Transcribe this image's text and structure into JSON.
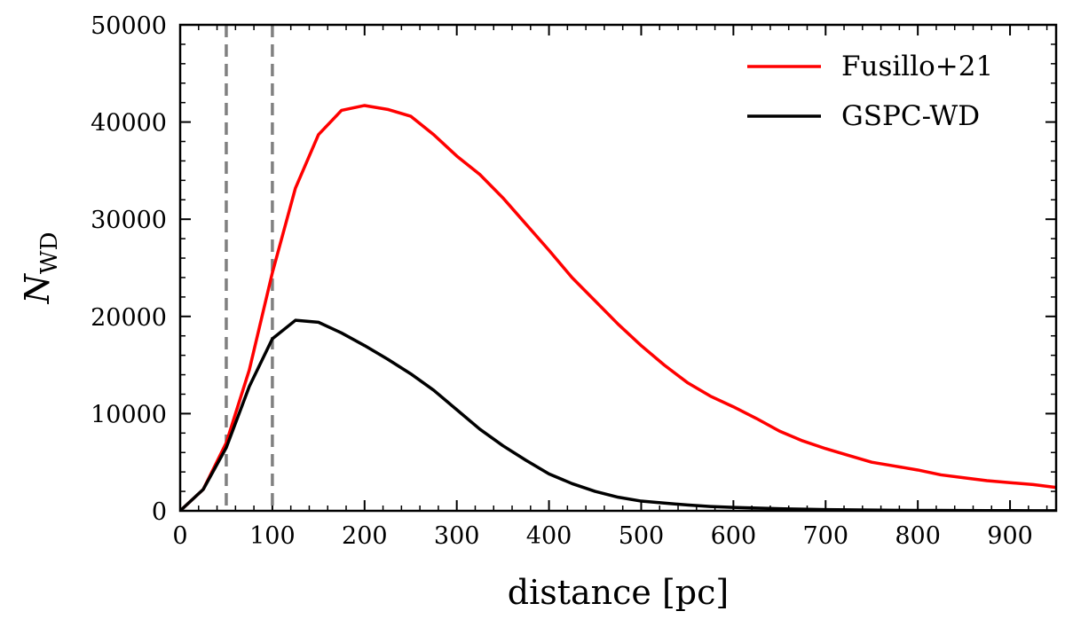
{
  "chart_data": {
    "type": "line",
    "title": "",
    "xlabel": "distance [pc]",
    "ylabel": {
      "main": "N",
      "sub": "WD"
    },
    "xlim": [
      0,
      950
    ],
    "ylim": [
      0,
      50000
    ],
    "x_ticks": [
      0,
      100,
      200,
      300,
      400,
      500,
      600,
      700,
      800,
      900
    ],
    "y_ticks": [
      0,
      10000,
      20000,
      30000,
      40000,
      50000
    ],
    "grid": false,
    "legend_position": "top-right",
    "vlines": [
      {
        "x": 50,
        "color": "#808080",
        "style": "dashed"
      },
      {
        "x": 100,
        "color": "#808080",
        "style": "dashed"
      }
    ],
    "series": [
      {
        "name": "Fusillo+21",
        "color": "#ff0000",
        "x": [
          0,
          25,
          50,
          75,
          100,
          125,
          150,
          175,
          200,
          225,
          250,
          275,
          300,
          325,
          350,
          375,
          400,
          425,
          450,
          475,
          500,
          525,
          550,
          575,
          600,
          625,
          650,
          675,
          700,
          725,
          750,
          775,
          800,
          825,
          850,
          875,
          900,
          925,
          950
        ],
        "y": [
          0,
          2200,
          7000,
          14500,
          24500,
          33200,
          38700,
          41200,
          41700,
          41300,
          40600,
          38700,
          36500,
          34600,
          32200,
          29500,
          26800,
          24000,
          21600,
          19200,
          17000,
          15000,
          13200,
          11800,
          10700,
          9500,
          8200,
          7200,
          6400,
          5700,
          5000,
          4600,
          4200,
          3700,
          3400,
          3100,
          2900,
          2700,
          2400
        ]
      },
      {
        "name": "GSPC-WD",
        "color": "#000000",
        "x": [
          0,
          25,
          50,
          75,
          100,
          125,
          150,
          175,
          200,
          225,
          250,
          275,
          300,
          325,
          350,
          375,
          400,
          425,
          450,
          475,
          500,
          525,
          550,
          575,
          600,
          625,
          650,
          675,
          700,
          725,
          750,
          775,
          800,
          825,
          850,
          875,
          900,
          925,
          950
        ],
        "y": [
          0,
          2200,
          6500,
          12800,
          17700,
          19600,
          19400,
          18300,
          17000,
          15600,
          14100,
          12400,
          10400,
          8400,
          6700,
          5200,
          3800,
          2800,
          2000,
          1400,
          1000,
          800,
          600,
          450,
          350,
          280,
          220,
          170,
          130,
          100,
          80,
          60,
          50,
          40,
          30,
          25,
          20,
          15,
          10
        ]
      }
    ]
  }
}
